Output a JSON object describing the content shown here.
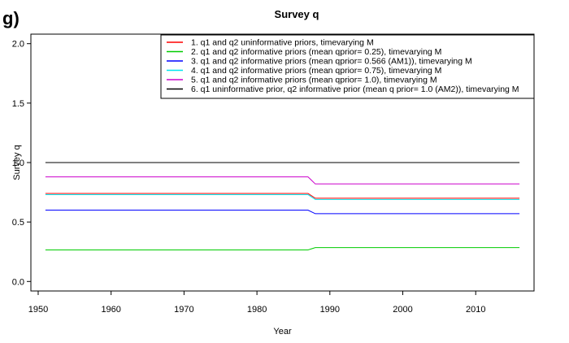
{
  "panel_label": "g)",
  "chart_data": {
    "type": "line",
    "title": "Survey q",
    "xlabel": "Year",
    "ylabel": "Survey q",
    "xlim": [
      1949,
      2018
    ],
    "ylim": [
      -0.08,
      2.08
    ],
    "xticks": [
      1950,
      1960,
      1970,
      1980,
      1990,
      2000,
      2010
    ],
    "yticks": [
      0.0,
      0.5,
      1.0,
      1.5,
      2.0
    ],
    "ytick_labels": [
      "0.0",
      "0.5",
      "1.0",
      "1.5",
      "2.0"
    ],
    "legend_position": "top-right",
    "series": [
      {
        "name": "1. q1 and q2 uninformative priors, timevarying M",
        "color": "#ff0000",
        "x": [
          1951,
          1987,
          1988,
          2016
        ],
        "y": [
          0.74,
          0.74,
          0.7,
          0.7
        ]
      },
      {
        "name": "2. q1 and q2 informative priors (mean qprior= 0.25), timevarying M",
        "color": "#00cc00",
        "x": [
          1951,
          1987,
          1988,
          2016
        ],
        "y": [
          0.265,
          0.265,
          0.285,
          0.285
        ]
      },
      {
        "name": "3. q1 and q2 informative priors (mean qprior= 0.566 (AM1)), timevarying M",
        "color": "#0000ff",
        "x": [
          1951,
          1987,
          1988,
          2016
        ],
        "y": [
          0.6,
          0.6,
          0.57,
          0.57
        ]
      },
      {
        "name": "4. q1 and q2 informative priors (mean qprior= 0.75), timevarying M",
        "color": "#00e5ee",
        "x": [
          1951,
          1987,
          1988,
          2016
        ],
        "y": [
          0.73,
          0.73,
          0.69,
          0.69
        ]
      },
      {
        "name": "5. q1 and q2 informative priors (mean qprior= 1.0), timevarying M",
        "color": "#cc00cc",
        "x": [
          1951,
          1987,
          1988,
          2016
        ],
        "y": [
          0.88,
          0.88,
          0.82,
          0.82
        ]
      },
      {
        "name": "6. q1 uninformative prior, q2 informative prior (mean q prior= 1.0 (AM2)), timevarying M",
        "color": "#000000",
        "x": [
          1951,
          1987,
          1988,
          2016
        ],
        "y": [
          1.0,
          1.0,
          1.0,
          1.0
        ]
      }
    ]
  }
}
